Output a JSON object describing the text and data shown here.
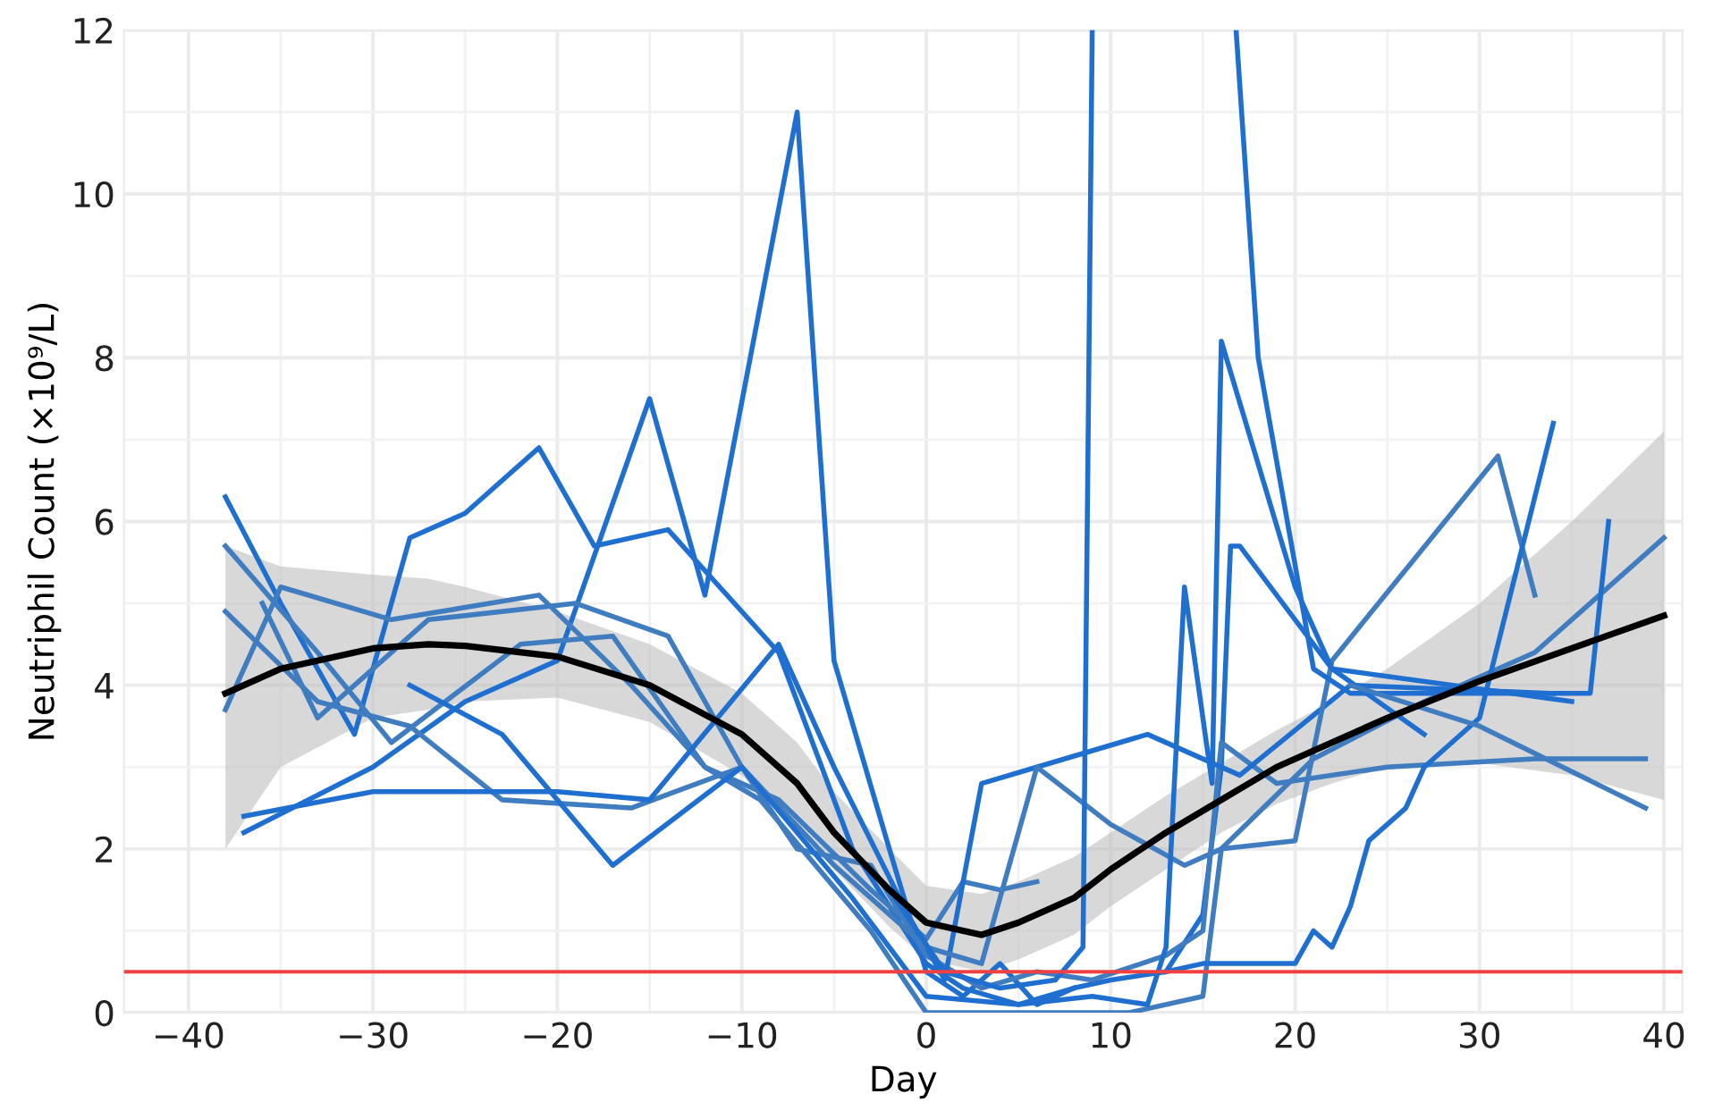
{
  "chart_data": {
    "type": "line",
    "xlabel": "Day",
    "ylabel": "Neutriphil Count (×10⁹/L)",
    "xlim": [
      -43.5,
      41
    ],
    "ylim": [
      0,
      12
    ],
    "xticks": [
      -40,
      -30,
      -20,
      -10,
      0,
      10,
      20,
      30,
      40
    ],
    "yticks": [
      0,
      2,
      4,
      6,
      8,
      10,
      12
    ],
    "grid": true,
    "marker": "none",
    "line_style": "solid",
    "series": [
      {
        "color": "#1f6fd1",
        "x": [
          -38,
          -35,
          -31,
          -28,
          -25,
          -21,
          -18,
          -14,
          -8,
          -4,
          0,
          2,
          5,
          8,
          10,
          13,
          15,
          16,
          16.5,
          17,
          22,
          27
        ],
        "values": [
          6.3,
          5.0,
          3.4,
          5.8,
          6.1,
          6.9,
          5.7,
          5.9,
          4.4,
          2.0,
          0.6,
          0.3,
          0.1,
          0.3,
          0.4,
          0.5,
          1.2,
          3.0,
          5.7,
          5.7,
          4.2,
          3.4
        ]
      },
      {
        "color": "#1f6fd1",
        "x": [
          -37,
          -30,
          -25,
          -20,
          -15,
          -12,
          -7,
          -5,
          -2,
          0,
          2,
          4,
          6,
          8
        ],
        "values": [
          2.2,
          3.0,
          3.8,
          4.3,
          7.5,
          5.1,
          11.0,
          4.3,
          2.0,
          0.5,
          0.2,
          0.6,
          0.1,
          0.3
        ]
      },
      {
        "color": "#3f7cc0",
        "x": [
          -38,
          -33,
          -28,
          -23,
          -16,
          -10,
          -7,
          -3,
          0,
          3,
          6,
          9,
          13,
          15,
          16,
          19,
          25,
          33,
          39
        ],
        "values": [
          4.9,
          3.8,
          3.5,
          2.6,
          2.5,
          3.0,
          2.0,
          1.8,
          0.7,
          0.3,
          0.5,
          0.4,
          0.7,
          1.0,
          3.3,
          2.8,
          3.0,
          3.1,
          3.1
        ]
      },
      {
        "color": "#3f7cc0",
        "x": [
          -38,
          -33,
          -29,
          -22,
          -17,
          -12,
          -8,
          -3,
          0,
          2,
          4,
          6
        ],
        "values": [
          5.7,
          4.4,
          3.3,
          4.5,
          4.6,
          3.0,
          2.6,
          1.5,
          0.9,
          1.6,
          1.5,
          1.6
        ]
      },
      {
        "color": "#3f7cc0",
        "x": [
          -38,
          -35,
          -29,
          -21,
          -16,
          -12,
          -9,
          -3,
          0,
          6,
          11,
          15,
          16,
          21,
          27,
          33,
          40
        ],
        "values": [
          3.7,
          5.2,
          4.8,
          5.1,
          4.0,
          3.0,
          2.6,
          1.0,
          0,
          0,
          0,
          0.2,
          2.0,
          3.1,
          3.8,
          4.4,
          5.8
        ]
      },
      {
        "color": "#1f6fd1",
        "x": [
          -37,
          -30,
          -20,
          -15,
          -8,
          -5,
          -1,
          1,
          3,
          6,
          12,
          17,
          23,
          34
        ],
        "values": [
          2.4,
          2.7,
          2.7,
          2.6,
          4.5,
          3.0,
          1.2,
          0.4,
          2.8,
          3.0,
          3.4,
          2.9,
          4.0,
          3.9
        ]
      },
      {
        "color": "#3f7cc0",
        "x": [
          -36,
          -33,
          -27,
          -19,
          -14,
          -10,
          -5,
          0,
          3,
          6,
          10,
          14,
          16,
          20,
          22,
          31,
          33
        ],
        "values": [
          5.0,
          3.6,
          4.8,
          5.0,
          4.6,
          3.0,
          1.8,
          0.8,
          0.6,
          3.0,
          2.3,
          1.8,
          2.0,
          2.1,
          4.3,
          6.8,
          5.1
        ]
      },
      {
        "color": "#1f6fd1",
        "x": [
          -28,
          -23,
          -17,
          -10,
          -4,
          0,
          5,
          9,
          12,
          13,
          14,
          15.5,
          16,
          20,
          22,
          35
        ],
        "values": [
          4.0,
          3.4,
          1.8,
          3.0,
          1.4,
          0.2,
          0.1,
          0.2,
          0.1,
          0.8,
          5.2,
          2.8,
          8.2,
          5.2,
          4.2,
          3.8
        ]
      },
      {
        "color": "#1f6fd1",
        "x": [
          -2,
          1,
          4,
          7,
          8.5,
          9
        ],
        "values": [
          1.5,
          0.5,
          0.3,
          0.4,
          0.8,
          12
        ]
      },
      {
        "color": "#1f6fd1",
        "x": [
          16.8,
          18,
          21,
          23,
          28,
          36,
          37
        ],
        "values": [
          12,
          8,
          4.2,
          3.9,
          3.9,
          3.9,
          6.0
        ]
      },
      {
        "color": "#1f6fd1",
        "x": [
          13,
          15,
          16,
          20,
          21,
          22,
          23,
          24,
          26,
          27,
          30,
          34
        ],
        "values": [
          0.5,
          0.6,
          0.6,
          0.6,
          1.0,
          0.8,
          1.3,
          2.1,
          2.5,
          3.0,
          3.6,
          7.2
        ]
      },
      {
        "color": "#3f7cc0",
        "x": [
          23,
          30,
          39
        ],
        "values": [
          4.0,
          3.5,
          2.5
        ]
      },
      {
        "color": "#000000",
        "x": [
          -38,
          -35,
          -30,
          -27,
          -25,
          -20,
          -15,
          -10,
          -7,
          -5,
          -2,
          0,
          3,
          5,
          8,
          10,
          13,
          16,
          19,
          22,
          25,
          30,
          35,
          40
        ],
        "values": [
          3.9,
          4.2,
          4.45,
          4.5,
          4.48,
          4.35,
          4.0,
          3.4,
          2.8,
          2.2,
          1.5,
          1.1,
          0.95,
          1.1,
          1.4,
          1.75,
          2.2,
          2.6,
          3.0,
          3.3,
          3.6,
          4.05,
          4.45,
          4.85
        ],
        "lower": [
          2.0,
          3.0,
          3.6,
          3.7,
          3.8,
          3.85,
          3.55,
          2.9,
          2.3,
          1.75,
          1.05,
          0.65,
          0.5,
          0.65,
          0.95,
          1.3,
          1.75,
          2.2,
          2.55,
          2.8,
          3.0,
          3.05,
          2.9,
          2.6
        ],
        "upper": [
          5.7,
          5.45,
          5.35,
          5.3,
          5.2,
          4.9,
          4.5,
          3.9,
          3.3,
          2.7,
          2.0,
          1.55,
          1.45,
          1.6,
          1.9,
          2.2,
          2.65,
          3.05,
          3.45,
          3.8,
          4.2,
          5.0,
          6.0,
          7.1
        ]
      }
    ],
    "ref_lines": [
      {
        "axis": "y",
        "value": 0.5,
        "color": "#f04040",
        "line_style": "solid"
      }
    ]
  }
}
